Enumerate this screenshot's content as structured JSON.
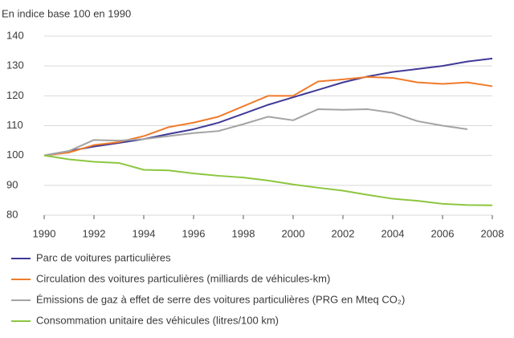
{
  "chart_data": {
    "type": "line",
    "y_label": "En indice base 100 en 1990",
    "x": [
      1990,
      1991,
      1992,
      1993,
      1994,
      1995,
      1996,
      1997,
      1998,
      1999,
      2000,
      2001,
      2002,
      2003,
      2004,
      2005,
      2006,
      2007,
      2008
    ],
    "xlim": [
      1990,
      2008
    ],
    "xticks": [
      1990,
      1992,
      1994,
      1996,
      1998,
      2000,
      2002,
      2004,
      2006,
      2008
    ],
    "ylim": [
      80,
      140
    ],
    "yticks": [
      80,
      90,
      100,
      110,
      120,
      130,
      140
    ],
    "grid": true,
    "legend": "bottom",
    "series": [
      {
        "name": "Parc de voitures particulières",
        "color": "#3f3a97",
        "values": [
          100,
          101.5,
          103,
          104.2,
          105.5,
          107.2,
          108.8,
          111,
          114,
          117,
          119.5,
          122,
          124.5,
          126.5,
          128,
          129,
          130,
          131.5,
          132.5
        ]
      },
      {
        "name": "Circulation des voitures particulières (milliards de véhicules-km)",
        "color": "#f07b2b",
        "values": [
          100,
          101,
          103.5,
          104.5,
          106.5,
          109.5,
          111,
          113,
          116.5,
          120,
          120,
          124.8,
          125.5,
          126.3,
          126,
          124.5,
          124,
          124.5,
          123.2
        ]
      },
      {
        "name": "Émissions de gaz à effet de serre des voitures particulières (PRG en Mteq CO₂)",
        "color": "#a3a3a3",
        "values": [
          100,
          101.5,
          105.2,
          105,
          105.5,
          106.5,
          107.5,
          108.2,
          110.5,
          113,
          111.8,
          115.5,
          115.3,
          115.5,
          114.3,
          111.5,
          110,
          108.8,
          null
        ]
      },
      {
        "name": "Consommation unitaire des véhicules (litres/100 km)",
        "color": "#8dc63f",
        "values": [
          100,
          98.7,
          97.9,
          97.5,
          95.2,
          95,
          94,
          93.2,
          92.6,
          91.6,
          90.3,
          89.2,
          88.2,
          86.8,
          85.5,
          84.8,
          83.8,
          83.4,
          83.3
        ]
      }
    ]
  }
}
